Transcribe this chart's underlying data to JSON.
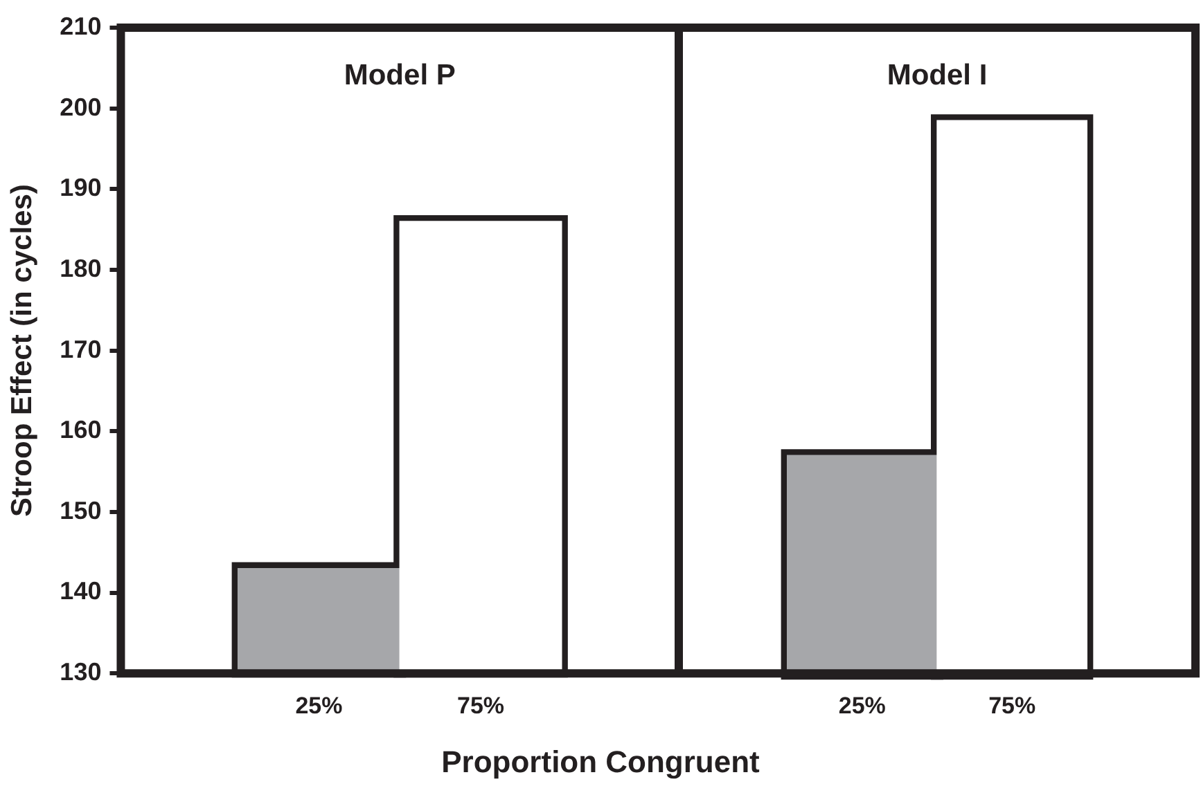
{
  "chart_data": [
    {
      "type": "bar",
      "title": "Model P",
      "xlabel": "Proportion Congruent",
      "ylabel": "Stroop Effect (in cycles)",
      "categories": [
        "25%",
        "75%"
      ],
      "values": [
        143,
        186
      ],
      "colors": [
        "#a6a7aa",
        "#ffffff"
      ],
      "ylim": [
        130,
        210
      ],
      "yticks": [
        130,
        140,
        150,
        160,
        170,
        180,
        190,
        200,
        210
      ]
    },
    {
      "type": "bar",
      "title": "Model I",
      "categories": [
        "25%",
        "75%"
      ],
      "values": [
        157,
        198.5
      ],
      "colors": [
        "#a6a7aa",
        "#ffffff"
      ],
      "ylim": [
        130,
        210
      ],
      "yticks": [
        130,
        140,
        150,
        160,
        170,
        180,
        190,
        200,
        210
      ],
      "tick_labels": "x"
    }
  ]
}
